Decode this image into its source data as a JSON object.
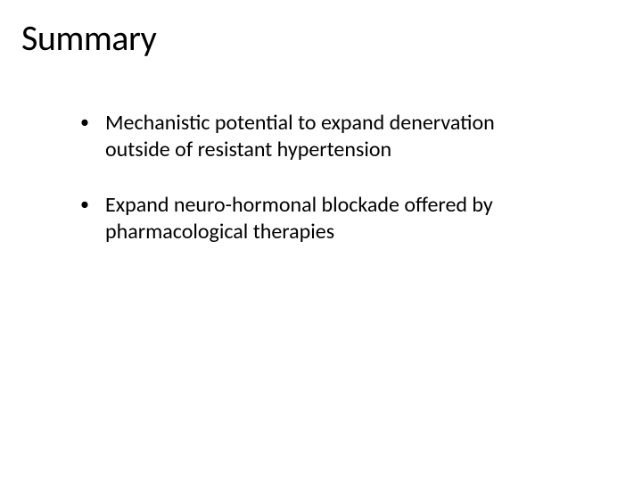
{
  "slide": {
    "title": "Summary",
    "bullets": [
      {
        "text": "Mechanistic potential to expand denervation outside of resistant hypertension"
      },
      {
        "text": "Expand neuro-hormonal blockade offered by pharmacological therapies"
      }
    ],
    "bullet_marker": "•"
  },
  "style": {
    "background_color": "#ffffff",
    "text_color": "#000000",
    "title_fontsize": 40,
    "body_fontsize": 24,
    "font_family": "Calibri"
  }
}
